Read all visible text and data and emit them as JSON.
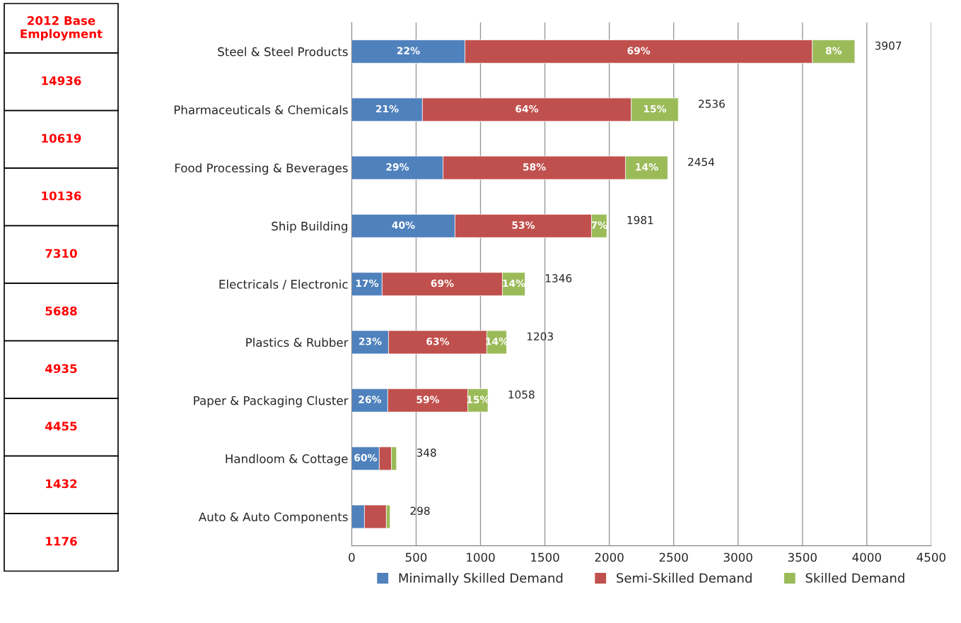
{
  "chart_data": {
    "type": "bar",
    "orientation": "horizontal",
    "stacked": true,
    "categories": [
      "Steel & Steel Products",
      "Pharmaceuticals & Chemicals",
      "Food Processing & Beverages",
      "Ship Building",
      "Electricals / Electronic",
      "Plastics & Rubber",
      "Paper & Packaging Cluster",
      "Handloom & Cottage",
      "Auto & Auto Components"
    ],
    "series": [
      {
        "name": "Minimally Skilled Demand",
        "color": "#4f81bd",
        "values": [
          879,
          549,
          709,
          802,
          236,
          286,
          280,
          214,
          99
        ]
      },
      {
        "name": "Semi-Skilled Demand",
        "color": "#c0504d",
        "values": [
          2698,
          1621,
          1417,
          1060,
          934,
          763,
          621,
          94,
          170
        ]
      },
      {
        "name": "Skilled Demand",
        "color": "#9bbb59",
        "values": [
          330,
          366,
          328,
          119,
          176,
          154,
          157,
          40,
          29
        ]
      }
    ],
    "totals": [
      "3907",
      "2536",
      "2454",
      "1981",
      "1346",
      "1203",
      "1058",
      "348",
      "298"
    ],
    "xlim": [
      0,
      4500
    ],
    "xticks": [
      0,
      500,
      1000,
      1500,
      2000,
      2500,
      3000,
      3500,
      4000,
      4500
    ],
    "grid": "x",
    "legend": "bottom",
    "annotations": [
      "2012 Base Employment",
      "14936",
      "10619",
      "10136",
      "7310",
      "5688",
      "4935",
      "4455",
      "1432",
      "1176",
      "22%",
      "69%",
      "8%",
      "21%",
      "64%",
      "15%",
      "29%",
      "58%",
      "14%",
      "40%",
      "53%",
      "7%",
      "17%",
      "69%",
      "14%",
      "23%",
      "63%",
      "14%",
      "26%",
      "59%",
      "15%",
      "60%"
    ]
  }
}
